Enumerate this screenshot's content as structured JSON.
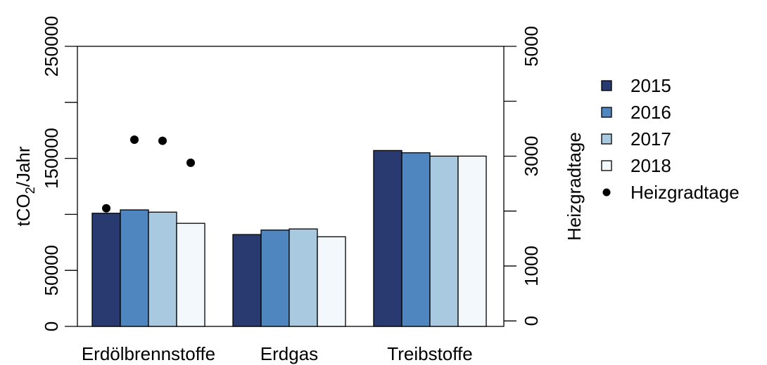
{
  "chart_data": {
    "type": "bar",
    "categories": [
      "Erdölbrennstoffe",
      "Erdgas",
      "Treibstoffe"
    ],
    "series": [
      {
        "name": "2015",
        "color": "#283a70",
        "values": [
          101000,
          82000,
          157000
        ]
      },
      {
        "name": "2016",
        "color": "#4f86c0",
        "values": [
          104000,
          86000,
          155000
        ]
      },
      {
        "name": "2017",
        "color": "#a9c9e1",
        "values": [
          102000,
          87000,
          152000
        ]
      },
      {
        "name": "2018",
        "color": "#f3f8fc",
        "values": [
          92000,
          80000,
          152000
        ]
      }
    ],
    "points": {
      "name": "Heizgradtage",
      "x_positions": [
        {
          "category": "Erdölbrennstoffe",
          "series": "2015"
        },
        {
          "category": "Erdölbrennstoffe",
          "series": "2016"
        },
        {
          "category": "Erdölbrennstoffe",
          "series": "2017"
        },
        {
          "category": "Erdölbrennstoffe",
          "series": "2018"
        }
      ],
      "values": [
        2050,
        3300,
        3280,
        2880
      ]
    },
    "ylabel": "tCO",
    "ylabel_sub": "2",
    "ylabel_suffix": "/Jahr",
    "ylim": [
      0,
      250000
    ],
    "yticks": [
      0,
      50000,
      150000,
      250000
    ],
    "yticks_unlabeled": [
      100000,
      200000
    ],
    "y2label": "Heizgradtage",
    "y2lim": [
      -100,
      5000
    ],
    "y2ticks": [
      0,
      1000,
      3000,
      5000
    ],
    "y2ticks_unlabeled": [
      2000,
      4000
    ],
    "legend": {
      "placement": "right",
      "entries": [
        {
          "label": "2015",
          "marker": "square",
          "color": "#283a70"
        },
        {
          "label": "2016",
          "marker": "square",
          "color": "#4f86c0"
        },
        {
          "label": "2017",
          "marker": "square",
          "color": "#a9c9e1"
        },
        {
          "label": "2018",
          "marker": "square",
          "color": "#f3f8fc"
        },
        {
          "label": "Heizgradtage",
          "marker": "dot",
          "color": "#000000"
        }
      ]
    }
  }
}
